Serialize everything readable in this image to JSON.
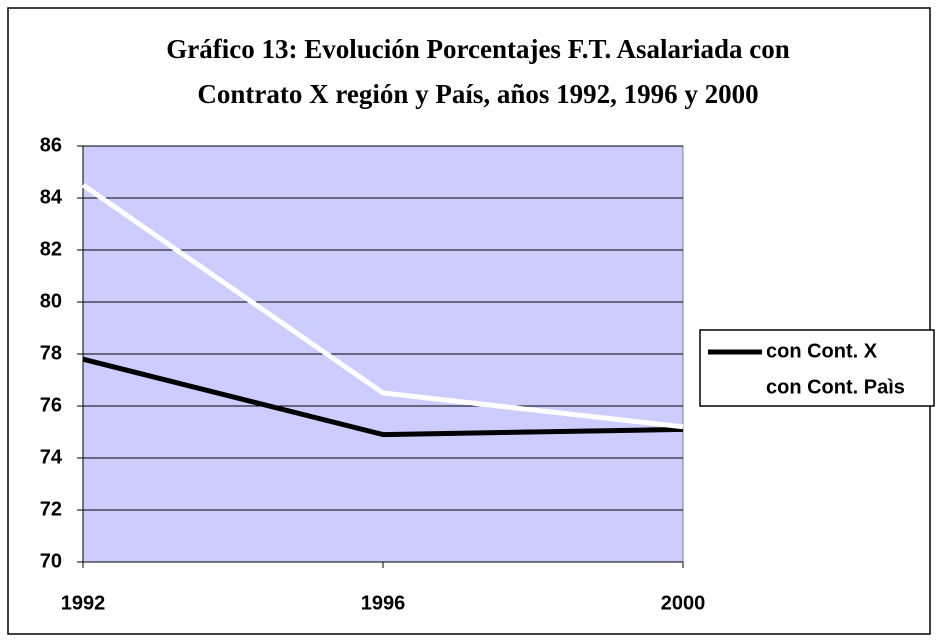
{
  "chart_data": {
    "type": "line",
    "title": [
      "Gráfico 13: Evolución Porcentajes F.T. Asalariada con",
      "Contrato X región y País, años 1992, 1996 y 2000"
    ],
    "x": [
      1992,
      1996,
      2000
    ],
    "xlim": [
      1992,
      2000
    ],
    "xticks": [
      1992,
      1996,
      2000
    ],
    "ylim": [
      70,
      86
    ],
    "yticks": [
      70,
      72,
      74,
      76,
      78,
      80,
      82,
      84,
      86
    ],
    "grid": true,
    "legend": "right",
    "plot_background": "#ccccff",
    "series": [
      {
        "name": "con Cont. X",
        "color": "#000000",
        "values": [
          77.8,
          74.9,
          75.1
        ]
      },
      {
        "name": "con Cont. Paìs",
        "color": "#ffffff",
        "values": [
          84.5,
          76.5,
          75.2
        ]
      }
    ]
  }
}
